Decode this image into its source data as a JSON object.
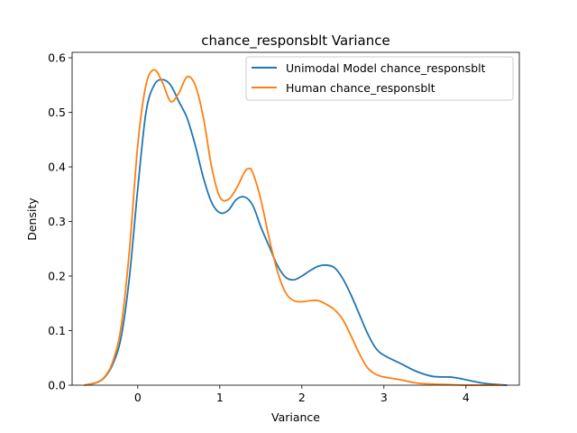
{
  "chart_data": {
    "type": "line",
    "title": "chance_responsblt Variance",
    "xlabel": "Variance",
    "ylabel": "Density",
    "xlim": [
      -0.8,
      4.65
    ],
    "ylim": [
      0,
      0.61
    ],
    "xticks": [
      0,
      1,
      2,
      3,
      4
    ],
    "yticks": [
      0.0,
      0.1,
      0.2,
      0.3,
      0.4,
      0.5,
      0.6
    ],
    "grid": false,
    "legend_position": "top-right",
    "series": [
      {
        "name": "Unimodal Model chance_responsblt",
        "color": "#1f77b4",
        "x": [
          -0.65,
          -0.5,
          -0.4,
          -0.3,
          -0.2,
          -0.1,
          0.0,
          0.1,
          0.2,
          0.3,
          0.4,
          0.5,
          0.6,
          0.7,
          0.8,
          0.9,
          1.0,
          1.1,
          1.2,
          1.3,
          1.4,
          1.5,
          1.6,
          1.7,
          1.8,
          1.9,
          2.0,
          2.1,
          2.2,
          2.3,
          2.4,
          2.5,
          2.6,
          2.7,
          2.8,
          2.9,
          3.0,
          3.2,
          3.4,
          3.6,
          3.8,
          3.9,
          4.0,
          4.2,
          4.4,
          4.5
        ],
        "y": [
          0.0,
          0.005,
          0.015,
          0.04,
          0.09,
          0.2,
          0.36,
          0.5,
          0.55,
          0.56,
          0.55,
          0.52,
          0.49,
          0.44,
          0.38,
          0.335,
          0.316,
          0.32,
          0.34,
          0.345,
          0.33,
          0.29,
          0.255,
          0.22,
          0.198,
          0.193,
          0.2,
          0.21,
          0.218,
          0.22,
          0.215,
          0.195,
          0.165,
          0.13,
          0.095,
          0.068,
          0.055,
          0.04,
          0.025,
          0.016,
          0.015,
          0.013,
          0.01,
          0.004,
          0.001,
          0.0
        ]
      },
      {
        "name": "Human chance_responsblt",
        "color": "#ff7f0e",
        "x": [
          -0.65,
          -0.5,
          -0.4,
          -0.3,
          -0.2,
          -0.1,
          0.0,
          0.1,
          0.2,
          0.3,
          0.4,
          0.5,
          0.6,
          0.7,
          0.8,
          0.9,
          1.0,
          1.1,
          1.2,
          1.3,
          1.35,
          1.4,
          1.5,
          1.6,
          1.7,
          1.8,
          1.9,
          2.0,
          2.1,
          2.2,
          2.3,
          2.4,
          2.5,
          2.6,
          2.7,
          2.8,
          2.9,
          3.0,
          3.2,
          3.4,
          3.6,
          3.8,
          4.0,
          4.2,
          4.45
        ],
        "y": [
          0.0,
          0.005,
          0.016,
          0.045,
          0.11,
          0.25,
          0.44,
          0.55,
          0.578,
          0.555,
          0.52,
          0.535,
          0.565,
          0.55,
          0.49,
          0.4,
          0.345,
          0.34,
          0.36,
          0.39,
          0.397,
          0.39,
          0.34,
          0.27,
          0.21,
          0.17,
          0.155,
          0.153,
          0.155,
          0.155,
          0.148,
          0.138,
          0.12,
          0.09,
          0.058,
          0.032,
          0.02,
          0.015,
          0.01,
          0.004,
          0.002,
          0.001,
          0.0,
          0.0,
          0.0
        ]
      }
    ]
  }
}
